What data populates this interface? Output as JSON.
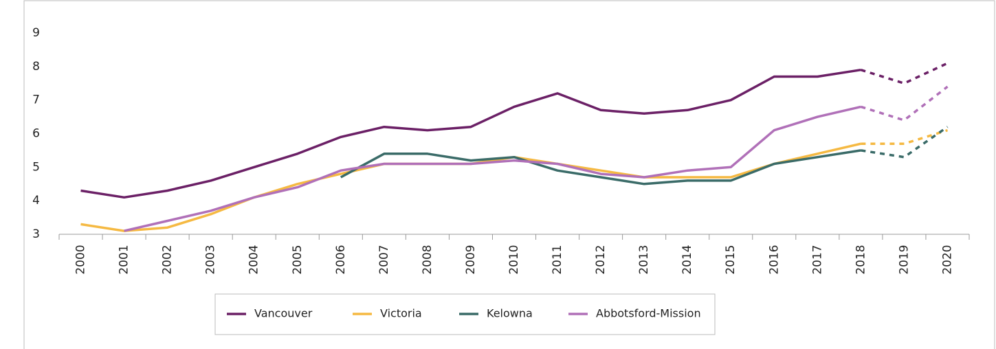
{
  "chart_data": {
    "type": "line",
    "categories": [
      "2000",
      "2001",
      "2002",
      "2003",
      "2004",
      "2005",
      "2006",
      "2007",
      "2008",
      "2009",
      "2010",
      "2011",
      "2012",
      "2013",
      "2014",
      "2015",
      "2016",
      "2017",
      "2018",
      "2019",
      "2020"
    ],
    "series": [
      {
        "name": "Vancouver",
        "color": "#6b2066",
        "values": [
          4.3,
          4.1,
          4.3,
          4.6,
          5.0,
          5.4,
          5.9,
          6.2,
          6.1,
          6.2,
          6.8,
          7.2,
          6.7,
          6.6,
          6.7,
          7.0,
          7.7,
          7.7,
          7.9,
          7.5,
          8.1
        ]
      },
      {
        "name": "Victoria",
        "color": "#f5b942",
        "values": [
          3.3,
          3.1,
          3.2,
          3.6,
          4.1,
          4.5,
          4.8,
          5.1,
          5.1,
          5.1,
          5.3,
          5.1,
          4.9,
          4.7,
          4.7,
          4.7,
          5.1,
          5.4,
          5.7,
          5.7,
          6.1
        ]
      },
      {
        "name": "Kelowna",
        "color": "#3a6b68",
        "values": [
          null,
          null,
          null,
          null,
          null,
          null,
          4.7,
          5.4,
          5.4,
          5.2,
          5.3,
          4.9,
          4.7,
          4.5,
          4.6,
          4.6,
          5.1,
          5.3,
          5.5,
          5.3,
          6.2
        ]
      },
      {
        "name": "Abbotsford-Mission",
        "color": "#b070b8",
        "values": [
          null,
          3.1,
          3.4,
          3.7,
          4.1,
          4.4,
          4.9,
          5.1,
          5.1,
          5.1,
          5.2,
          5.1,
          4.8,
          4.7,
          4.9,
          5.0,
          6.1,
          6.5,
          6.8,
          6.4,
          7.4
        ]
      }
    ],
    "dashed_from": "2018",
    "ylim": [
      3,
      9
    ],
    "yticks": [
      3,
      4,
      5,
      6,
      7,
      8,
      9
    ],
    "grid": false,
    "legend": "bottom"
  }
}
